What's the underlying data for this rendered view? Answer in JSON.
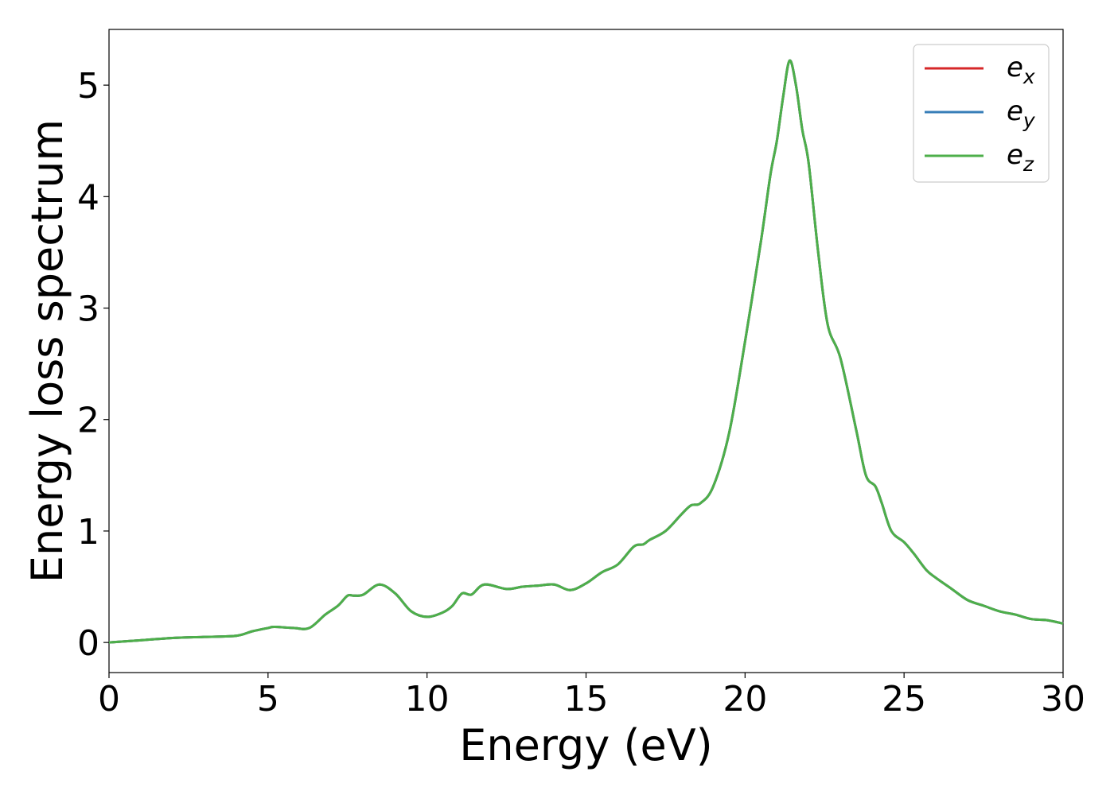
{
  "chart_data": {
    "type": "line",
    "xlabel": "Energy (eV)",
    "ylabel": "Energy loss spectrum",
    "xlim": [
      0,
      30
    ],
    "ylim": [
      -0.27,
      5.5
    ],
    "xticks": [
      0,
      5,
      10,
      15,
      20,
      25,
      30
    ],
    "yticks": [
      0,
      1,
      2,
      3,
      4,
      5
    ],
    "grid": false,
    "legend_position": "top-right",
    "series": [
      {
        "name": "e",
        "subscript": "x",
        "color": "#d62728",
        "x": [
          0,
          1,
          2,
          3,
          4,
          4.5,
          5,
          5.2,
          5.8,
          6.3,
          6.8,
          7.2,
          7.5,
          7.7,
          8.0,
          8.5,
          9.0,
          9.5,
          10.0,
          10.5,
          10.8,
          11.1,
          11.4,
          11.8,
          12.5,
          13,
          13.5,
          14,
          14.5,
          15,
          15.5,
          16,
          16.5,
          16.8,
          17,
          17.5,
          18,
          18.3,
          18.6,
          19,
          19.5,
          20,
          20.5,
          20.8,
          21,
          21.2,
          21.4,
          21.6,
          21.8,
          22,
          22.3,
          22.6,
          23,
          23.5,
          23.8,
          24.1,
          24.3,
          24.6,
          25,
          25.3,
          25.7,
          26,
          26.5,
          27,
          27.5,
          28,
          28.5,
          29,
          29.5,
          30
        ],
        "y": [
          0.0,
          0.02,
          0.04,
          0.05,
          0.06,
          0.1,
          0.13,
          0.14,
          0.13,
          0.13,
          0.25,
          0.33,
          0.42,
          0.42,
          0.43,
          0.52,
          0.44,
          0.28,
          0.23,
          0.27,
          0.33,
          0.44,
          0.43,
          0.52,
          0.48,
          0.5,
          0.51,
          0.52,
          0.47,
          0.53,
          0.63,
          0.7,
          0.86,
          0.88,
          0.92,
          1.0,
          1.15,
          1.23,
          1.25,
          1.4,
          1.88,
          2.7,
          3.6,
          4.2,
          4.5,
          4.9,
          5.22,
          5.0,
          4.6,
          4.3,
          3.5,
          2.85,
          2.55,
          1.9,
          1.5,
          1.4,
          1.25,
          1.0,
          0.9,
          0.8,
          0.65,
          0.58,
          0.48,
          0.38,
          0.33,
          0.28,
          0.25,
          0.21,
          0.2,
          0.17
        ]
      },
      {
        "name": "e",
        "subscript": "y",
        "color": "#377eb8",
        "x": [
          0,
          1,
          2,
          3,
          4,
          4.5,
          5,
          5.2,
          5.8,
          6.3,
          6.8,
          7.2,
          7.5,
          7.7,
          8.0,
          8.5,
          9.0,
          9.5,
          10.0,
          10.5,
          10.8,
          11.1,
          11.4,
          11.8,
          12.5,
          13,
          13.5,
          14,
          14.5,
          15,
          15.5,
          16,
          16.5,
          16.8,
          17,
          17.5,
          18,
          18.3,
          18.6,
          19,
          19.5,
          20,
          20.5,
          20.8,
          21,
          21.2,
          21.4,
          21.6,
          21.8,
          22,
          22.3,
          22.6,
          23,
          23.5,
          23.8,
          24.1,
          24.3,
          24.6,
          25,
          25.3,
          25.7,
          26,
          26.5,
          27,
          27.5,
          28,
          28.5,
          29,
          29.5,
          30
        ],
        "y": [
          0.0,
          0.02,
          0.04,
          0.05,
          0.06,
          0.1,
          0.13,
          0.14,
          0.13,
          0.13,
          0.25,
          0.33,
          0.42,
          0.42,
          0.43,
          0.52,
          0.44,
          0.28,
          0.23,
          0.27,
          0.33,
          0.44,
          0.43,
          0.52,
          0.48,
          0.5,
          0.51,
          0.52,
          0.47,
          0.53,
          0.63,
          0.7,
          0.86,
          0.88,
          0.92,
          1.0,
          1.15,
          1.23,
          1.25,
          1.4,
          1.88,
          2.7,
          3.6,
          4.2,
          4.5,
          4.9,
          5.22,
          5.0,
          4.6,
          4.3,
          3.5,
          2.85,
          2.55,
          1.9,
          1.5,
          1.4,
          1.25,
          1.0,
          0.9,
          0.8,
          0.65,
          0.58,
          0.48,
          0.38,
          0.33,
          0.28,
          0.25,
          0.21,
          0.2,
          0.17
        ]
      },
      {
        "name": "e",
        "subscript": "z",
        "color": "#4daf4a",
        "x": [
          0,
          1,
          2,
          3,
          4,
          4.5,
          5,
          5.2,
          5.8,
          6.3,
          6.8,
          7.2,
          7.5,
          7.7,
          8.0,
          8.5,
          9.0,
          9.5,
          10.0,
          10.5,
          10.8,
          11.1,
          11.4,
          11.8,
          12.5,
          13,
          13.5,
          14,
          14.5,
          15,
          15.5,
          16,
          16.5,
          16.8,
          17,
          17.5,
          18,
          18.3,
          18.6,
          19,
          19.5,
          20,
          20.5,
          20.8,
          21,
          21.2,
          21.4,
          21.6,
          21.8,
          22,
          22.3,
          22.6,
          23,
          23.5,
          23.8,
          24.1,
          24.3,
          24.6,
          25,
          25.3,
          25.7,
          26,
          26.5,
          27,
          27.5,
          28,
          28.5,
          29,
          29.5,
          30
        ],
        "y": [
          0.0,
          0.02,
          0.04,
          0.05,
          0.06,
          0.1,
          0.13,
          0.14,
          0.13,
          0.13,
          0.25,
          0.33,
          0.42,
          0.42,
          0.43,
          0.52,
          0.44,
          0.28,
          0.23,
          0.27,
          0.33,
          0.44,
          0.43,
          0.52,
          0.48,
          0.5,
          0.51,
          0.52,
          0.47,
          0.53,
          0.63,
          0.7,
          0.86,
          0.88,
          0.92,
          1.0,
          1.15,
          1.23,
          1.25,
          1.4,
          1.88,
          2.7,
          3.6,
          4.2,
          4.5,
          4.9,
          5.22,
          5.0,
          4.6,
          4.3,
          3.5,
          2.85,
          2.55,
          1.9,
          1.5,
          1.4,
          1.25,
          1.0,
          0.9,
          0.8,
          0.65,
          0.58,
          0.48,
          0.38,
          0.33,
          0.28,
          0.25,
          0.21,
          0.2,
          0.17
        ]
      }
    ]
  }
}
